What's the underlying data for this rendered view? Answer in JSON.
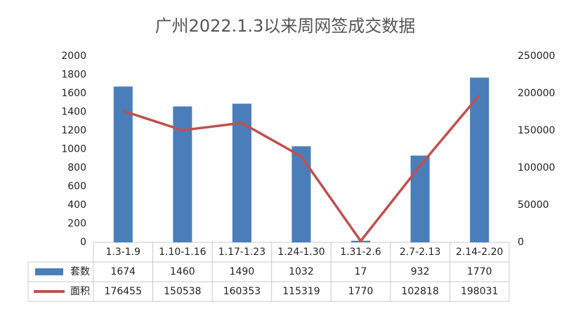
{
  "chart_data": {
    "type": "bar",
    "title": "广州2022.1.3以来周网签成交数据",
    "categories": [
      "1.3-1.9",
      "1.10-1.16",
      "1.17-1.23",
      "1.24-1.30",
      "1.31-2.6",
      "2.7-2.13",
      "2.14-2.20"
    ],
    "series": [
      {
        "name": "套数",
        "type": "bar",
        "color": "#4a7ebb",
        "values": [
          1674,
          1460,
          1490,
          1032,
          17,
          932,
          1770
        ]
      },
      {
        "name": "面积",
        "type": "line",
        "axis": "y2",
        "color": "#c0504d",
        "values": [
          176455,
          150538,
          160353,
          115319,
          1770,
          102818,
          198031
        ]
      }
    ],
    "ylim": [
      0,
      2000
    ],
    "yticks": [
      0,
      200,
      400,
      600,
      800,
      1000,
      1200,
      1400,
      1600,
      1800,
      2000
    ],
    "y2lim": [
      0,
      250000
    ],
    "y2ticks": [
      0,
      50000,
      100000,
      150000,
      200000,
      250000
    ],
    "grid": false
  }
}
